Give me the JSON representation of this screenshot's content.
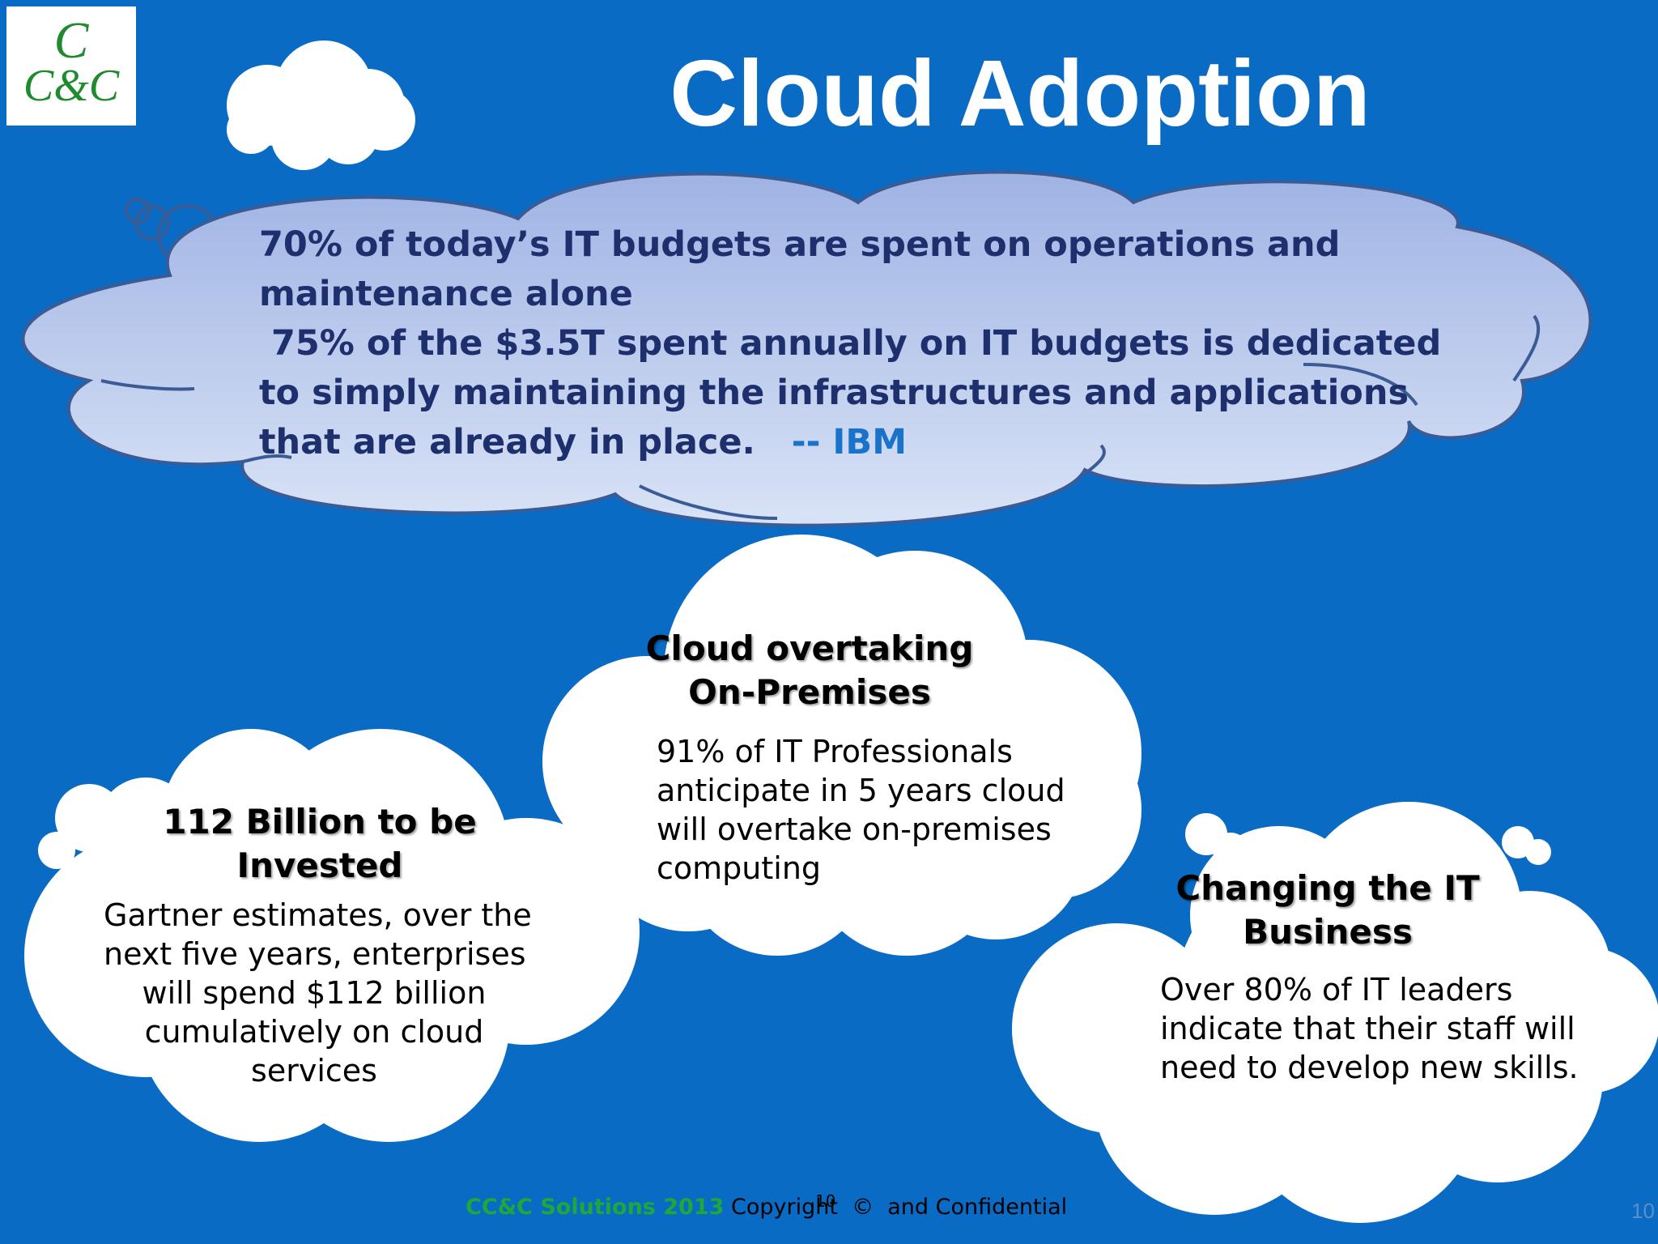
{
  "logo": {
    "top": "C",
    "bottom": "C&C"
  },
  "title": "Cloud Adoption",
  "quote": {
    "lines": [
      "70% of today’s IT budgets are spent on operations and",
      "maintenance alone",
      " 75% of the $3.5T spent annually on IT budgets is dedicated",
      "to simply maintaining the infrastructures and applications",
      "that are already in place.   "
    ],
    "source": "-- IBM"
  },
  "clouds": [
    {
      "heading": [
        "Cloud overtaking",
        "On-Premises"
      ],
      "body": [
        "91% of IT Professionals",
        "anticipate in 5 years cloud",
        "will overtake on-premises",
        "computing"
      ]
    },
    {
      "heading": [
        "112 Billion to be",
        "Invested"
      ],
      "body": [
        "Gartner estimates, over the",
        "next five years, enterprises",
        "will spend $112 billion",
        "cumulatively on cloud",
        "services"
      ]
    },
    {
      "heading": [
        "Changing the IT",
        "Business"
      ],
      "body": [
        "Over 80% of IT leaders",
        "indicate that their staff will",
        "need to develop new skills."
      ]
    }
  ],
  "footer": {
    "brand": "CC&C Solutions 2013",
    "copyright": " Copyright  ©  and Confidential",
    "mid_number": "10"
  },
  "page_number": "10",
  "colors": {
    "background": "#0a6bc4",
    "quote_text": "#1e2f6e",
    "quote_source": "#1a73c9",
    "brand_green": "#1ea83a"
  }
}
